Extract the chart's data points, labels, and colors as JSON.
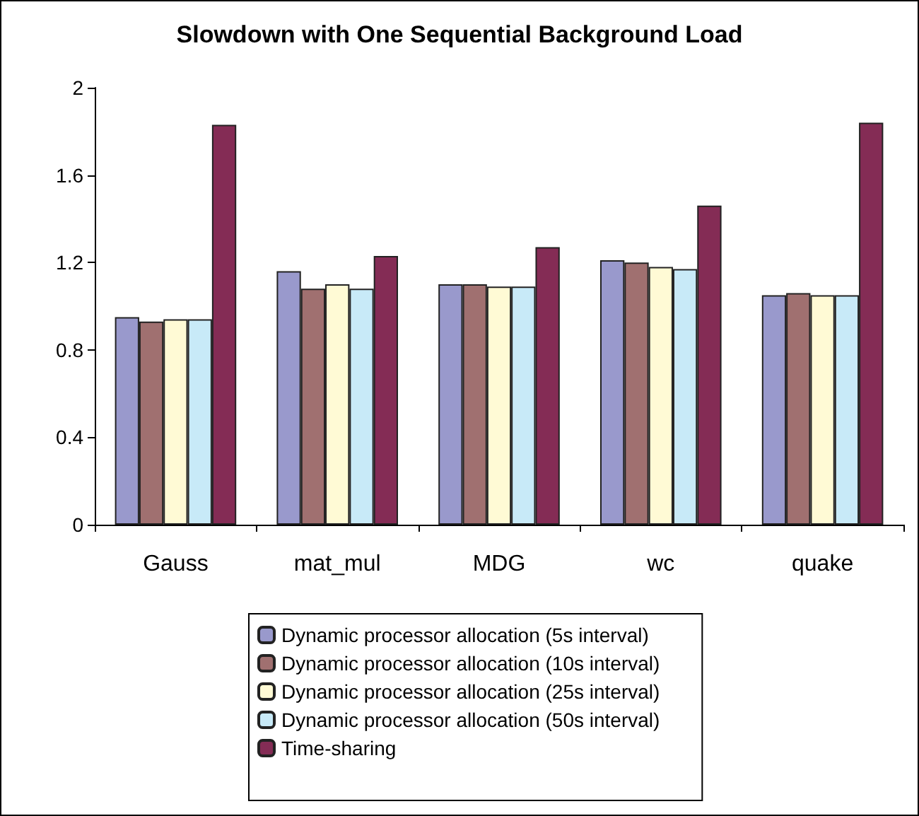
{
  "chart_data": {
    "type": "bar",
    "title": "Slowdown with One Sequential Background Load",
    "categories": [
      "Gauss",
      "mat_mul",
      "MDG",
      "wc",
      "quake"
    ],
    "series": [
      {
        "name": "Dynamic processor allocation (5s interval)",
        "color": "#9999cc",
        "values": [
          0.95,
          1.16,
          1.1,
          1.21,
          1.05
        ]
      },
      {
        "name": "Dynamic processor allocation (10s interval)",
        "color": "#a07070",
        "values": [
          0.93,
          1.08,
          1.1,
          1.2,
          1.06
        ]
      },
      {
        "name": "Dynamic processor allocation (25s interval)",
        "color": "#fffad5",
        "values": [
          0.94,
          1.1,
          1.09,
          1.18,
          1.05
        ]
      },
      {
        "name": "Dynamic processor allocation (50s interval)",
        "color": "#c8eaf8",
        "values": [
          0.94,
          1.08,
          1.09,
          1.17,
          1.05
        ]
      },
      {
        "name": "Time-sharing",
        "color": "#842c55",
        "values": [
          1.83,
          1.23,
          1.27,
          1.46,
          1.84
        ]
      }
    ],
    "ylim": [
      0,
      2
    ],
    "yticks": [
      0,
      0.4,
      0.8,
      1.2,
      1.6,
      2
    ],
    "grid": false,
    "legend": "bottom"
  }
}
